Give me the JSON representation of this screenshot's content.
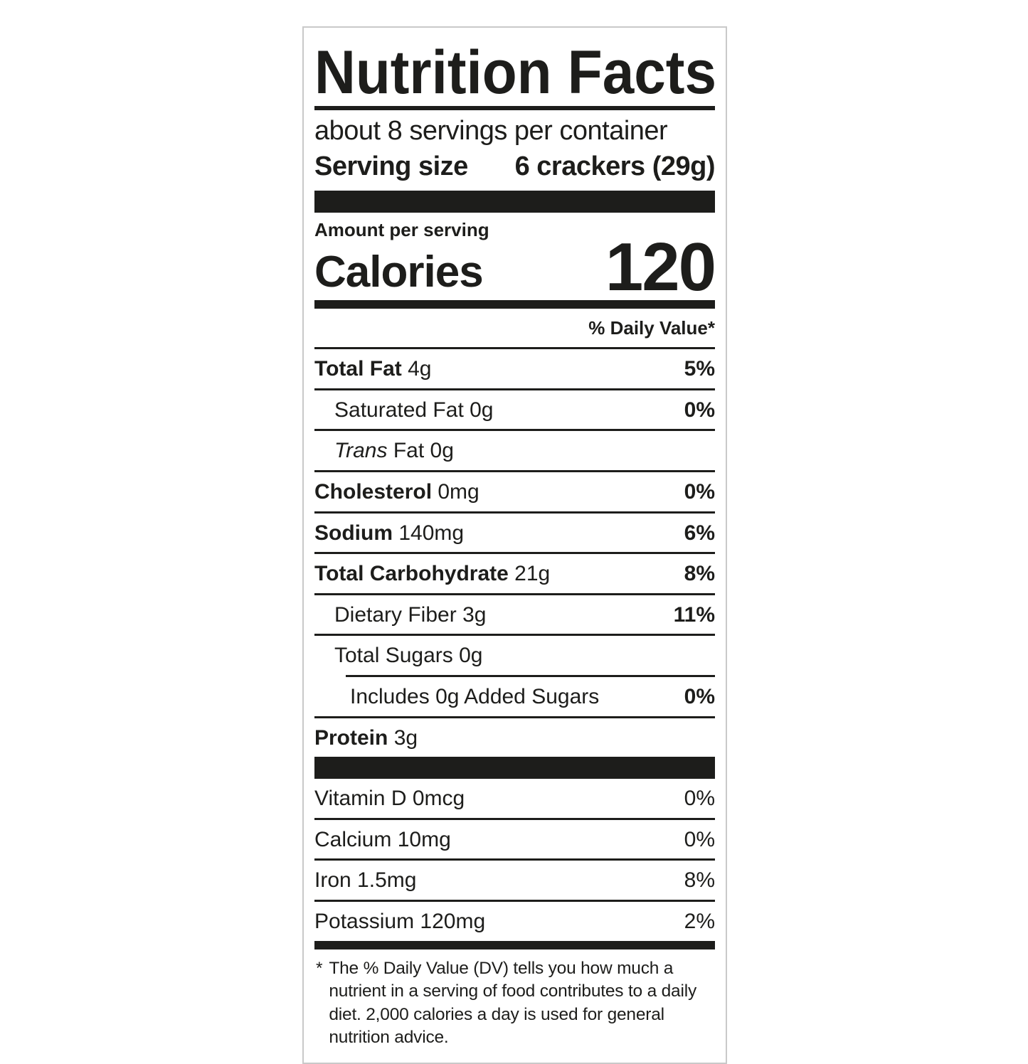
{
  "label": {
    "title": "Nutrition Facts",
    "servings_per_container": "about 8 servings per container",
    "serving_size": {
      "label": "Serving size",
      "value": "6 crackers (29g)"
    },
    "amount_per_serving": "Amount per serving",
    "calories": {
      "label": "Calories",
      "value": "120"
    },
    "daily_value_header": "% Daily Value*",
    "nutrients": [
      {
        "name": "Total Fat",
        "amount": "4g",
        "dv": "5%"
      },
      {
        "name": "Saturated Fat",
        "amount": "0g",
        "dv": "0%"
      },
      {
        "prefix": "Trans",
        "name": "Fat",
        "amount": "0g",
        "dv": ""
      },
      {
        "name": "Cholesterol",
        "amount": "0mg",
        "dv": "0%"
      },
      {
        "name": "Sodium",
        "amount": "140mg",
        "dv": "6%"
      },
      {
        "name": "Total Carbohydrate",
        "amount": "21g",
        "dv": "8%"
      },
      {
        "name": "Dietary Fiber",
        "amount": "3g",
        "dv": "11%"
      },
      {
        "name": "Total Sugars",
        "amount": "0g",
        "dv": ""
      },
      {
        "name": "Includes 0g Added Sugars",
        "amount": "",
        "dv": "0%"
      },
      {
        "name": "Protein",
        "amount": "3g",
        "dv": ""
      }
    ],
    "minerals": [
      {
        "name": "Vitamin D",
        "amount": "0mcg",
        "dv": "0%"
      },
      {
        "name": "Calcium",
        "amount": "10mg",
        "dv": "0%"
      },
      {
        "name": "Iron",
        "amount": "1.5mg",
        "dv": "8%"
      },
      {
        "name": "Potassium",
        "amount": "120mg",
        "dv": "2%"
      }
    ],
    "footnote_marker": "*",
    "footnote": "The % Daily Value (DV) tells you how much a nutrient in a serving of food contributes to a daily diet. 2,000 calories a day is used for general nutrition advice.",
    "ink_color": "#1d1d1b",
    "border_color": "#c9c9c9"
  }
}
